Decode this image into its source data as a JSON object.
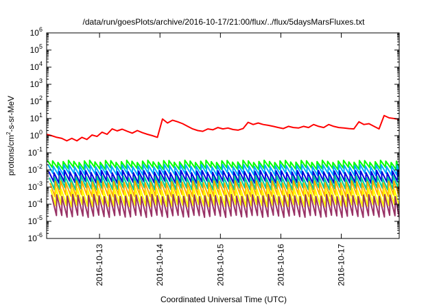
{
  "chart_data": {
    "type": "line",
    "title": "/data/run/goesPlots/archive/2016-10-17/21:00/flux/../flux/5daysMarsFluxes.txt",
    "xlabel": "Coordinated Universal Time (UTC)",
    "ylabel": "protons/cm²-s-sr-MeV",
    "ylabel_parts": [
      "protons/cm",
      "2",
      "-s-sr-MeV"
    ],
    "x_range": [
      "2016-10-12 03:00",
      "2016-10-17 23:00"
    ],
    "x_ticks": [
      {
        "date": "2016-10-13 00:00",
        "label": "2016-10-13"
      },
      {
        "date": "2016-10-14 00:00",
        "label": "2016-10-14"
      },
      {
        "date": "2016-10-15 00:00",
        "label": "2016-10-15"
      },
      {
        "date": "2016-10-16 00:00",
        "label": "2016-10-16"
      },
      {
        "date": "2016-10-17 00:00",
        "label": "2016-10-17"
      }
    ],
    "y_scale": "log",
    "y_range": [
      1e-06,
      1000000.0
    ],
    "y_ticks": [
      {
        "value": 1e-06,
        "base": "10",
        "exp": "-6"
      },
      {
        "value": 1e-05,
        "base": "10",
        "exp": "-5"
      },
      {
        "value": 0.0001,
        "base": "10",
        "exp": "-4"
      },
      {
        "value": 0.001,
        "base": "10",
        "exp": "-3"
      },
      {
        "value": 0.01,
        "base": "10",
        "exp": "-2"
      },
      {
        "value": 0.1,
        "base": "10",
        "exp": "-1"
      },
      {
        "value": 1,
        "base": "10",
        "exp": "0"
      },
      {
        "value": 10.0,
        "base": "10",
        "exp": "1"
      },
      {
        "value": 100.0,
        "base": "10",
        "exp": "2"
      },
      {
        "value": 1000.0,
        "base": "10",
        "exp": "3"
      },
      {
        "value": 10000.0,
        "base": "10",
        "exp": "4"
      },
      {
        "value": 100000.0,
        "base": "10",
        "exp": "5"
      },
      {
        "value": 1000000.0,
        "base": "10",
        "exp": "6"
      }
    ],
    "grid": false,
    "legend": "none",
    "series": [
      {
        "color": "#ff0000",
        "x": [
          "2016-10-12 03:00",
          "2016-10-12 05:00",
          "2016-10-12 07:00",
          "2016-10-12 09:00",
          "2016-10-12 11:00",
          "2016-10-12 13:00",
          "2016-10-12 15:00",
          "2016-10-12 17:00",
          "2016-10-12 19:00",
          "2016-10-12 21:00",
          "2016-10-12 23:00",
          "2016-10-13 01:00",
          "2016-10-13 03:00",
          "2016-10-13 05:00",
          "2016-10-13 07:00",
          "2016-10-13 09:00",
          "2016-10-13 11:00",
          "2016-10-13 13:00",
          "2016-10-13 15:00",
          "2016-10-13 17:00",
          "2016-10-13 19:00",
          "2016-10-13 21:00",
          "2016-10-13 23:00",
          "2016-10-14 01:00",
          "2016-10-14 03:00",
          "2016-10-14 05:00",
          "2016-10-14 07:00",
          "2016-10-14 09:00",
          "2016-10-14 11:00",
          "2016-10-14 13:00",
          "2016-10-14 15:00",
          "2016-10-14 17:00",
          "2016-10-14 19:00",
          "2016-10-14 21:00",
          "2016-10-14 23:00",
          "2016-10-15 01:00",
          "2016-10-15 03:00",
          "2016-10-15 05:00",
          "2016-10-15 07:00",
          "2016-10-15 09:00",
          "2016-10-15 11:00",
          "2016-10-15 13:00",
          "2016-10-15 15:00",
          "2016-10-15 17:00",
          "2016-10-15 19:00",
          "2016-10-15 21:00",
          "2016-10-15 23:00",
          "2016-10-16 01:00",
          "2016-10-16 03:00",
          "2016-10-16 05:00",
          "2016-10-16 07:00",
          "2016-10-16 09:00",
          "2016-10-16 11:00",
          "2016-10-16 13:00",
          "2016-10-16 15:00",
          "2016-10-16 17:00",
          "2016-10-16 19:00",
          "2016-10-16 21:00",
          "2016-10-16 23:00",
          "2016-10-17 01:00",
          "2016-10-17 03:00",
          "2016-10-17 05:00",
          "2016-10-17 07:00",
          "2016-10-17 09:00",
          "2016-10-17 11:00",
          "2016-10-17 13:00",
          "2016-10-17 15:00",
          "2016-10-17 17:00",
          "2016-10-17 19:00",
          "2016-10-17 21:00",
          "2016-10-17 23:00"
        ],
        "y": [
          1.2,
          1.0,
          0.8,
          0.7,
          0.5,
          0.7,
          0.5,
          0.8,
          0.6,
          1.1,
          0.9,
          1.6,
          1.2,
          2.5,
          1.9,
          2.4,
          1.8,
          1.4,
          2.0,
          1.5,
          1.2,
          1.0,
          0.8,
          9.5,
          5.5,
          8.0,
          6.5,
          5.0,
          3.5,
          2.5,
          2.0,
          1.8,
          2.5,
          2.2,
          3.0,
          2.5,
          2.8,
          2.3,
          2.1,
          2.6,
          6.0,
          4.5,
          5.5,
          4.5,
          4.0,
          3.5,
          3.0,
          2.6,
          3.5,
          3.0,
          2.8,
          3.5,
          3.0,
          4.5,
          3.5,
          3.0,
          4.5,
          3.5,
          3.0,
          2.8,
          2.6,
          2.5,
          6.5,
          4.5,
          5.0,
          3.5,
          2.5,
          15.0,
          11.0,
          10.0,
          9.0
        ]
      },
      {
        "color": "#00ff00",
        "level": 0.02,
        "amp": 1.6
      },
      {
        "color": "#00aaff",
        "level": 0.01,
        "amp": 1.8
      },
      {
        "color": "#0000dd",
        "level": 0.004,
        "amp": 2.0
      },
      {
        "color": "#00cc99",
        "level": 0.0018,
        "amp": 2.2
      },
      {
        "color": "#ffaa00",
        "level": 0.0008,
        "amp": 2.5
      },
      {
        "color": "#ffff00",
        "level": 0.00025,
        "amp": 3.0
      },
      {
        "color": "#993366",
        "level": 8e-05,
        "amp": 4.0
      }
    ]
  }
}
